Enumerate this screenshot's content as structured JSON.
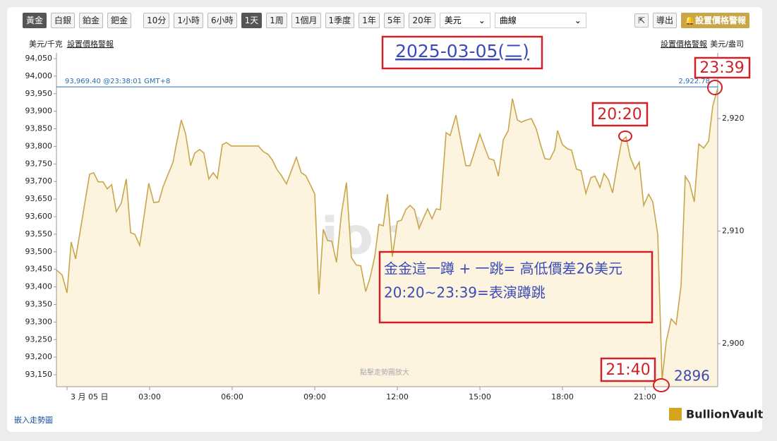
{
  "toolbar": {
    "metals": [
      "黃金",
      "白銀",
      "鉑金",
      "鈀金"
    ],
    "ranges": [
      "10分",
      "1小時",
      "6小時",
      "1天",
      "1周",
      "1個月",
      "1季度",
      "1年",
      "5年",
      "20年"
    ],
    "currency": "美元",
    "chart_style": "曲線",
    "export": "導出",
    "alert": "設置價格警報"
  },
  "chart_data": {
    "type": "line",
    "left_unit": "美元/千克",
    "right_unit": "美元/盎司",
    "alert_link": "設置價格警報",
    "watermark": "BullionVault",
    "hint": "點擊走勢圖放大",
    "x": [
      -0.38,
      -0.18,
      0,
      0.15,
      0.31,
      0.51,
      0.67,
      0.82,
      0.97,
      1.13,
      1.31,
      1.46,
      1.62,
      1.79,
      1.97,
      2.15,
      2.31,
      2.46,
      2.64,
      2.82,
      2.97,
      3.15,
      3.33,
      3.49,
      3.64,
      3.85,
      3.97,
      4.15,
      4.31,
      4.49,
      4.64,
      4.82,
      4.97,
      5.15,
      5.31,
      5.46,
      5.64,
      5.79,
      5.97,
      6.95,
      7.13,
      7.31,
      7.46,
      7.62,
      7.79,
      7.97,
      8.15,
      8.33,
      8.51,
      8.67,
      8.85,
      9.0,
      9.15,
      9.31,
      9.46,
      9.62,
      9.79,
      9.97,
      10.15,
      10.33,
      10.51,
      10.67,
      10.85,
      11.0,
      11.18,
      11.33,
      11.49,
      11.64,
      11.82,
      12.0,
      12.15,
      12.31,
      12.46,
      12.62,
      12.79,
      12.95,
      13.1,
      13.26,
      13.41,
      13.56,
      13.77,
      13.92,
      14.13,
      14.31,
      14.49,
      14.64,
      14.82,
      15.0,
      15.18,
      15.33,
      15.51,
      15.67,
      15.85,
      16.03,
      16.18,
      16.36,
      16.51,
      16.69,
      16.87,
      17.05,
      17.21,
      17.36,
      17.54,
      17.72,
      17.82,
      18.0,
      18.18,
      18.33,
      18.51,
      18.67,
      18.85,
      19.03,
      19.18,
      19.36,
      19.51,
      19.67,
      19.82,
      20.0,
      20.15,
      20.31,
      20.46,
      20.64,
      20.79,
      20.95,
      21.13,
      21.28,
      21.46,
      21.62,
      21.77,
      21.95,
      22.13,
      22.31,
      22.46,
      22.62,
      22.79,
      22.95,
      23.13,
      23.31,
      23.46,
      23.64
    ],
    "series": [
      {
        "color": "#c9a64a",
        "fill": "#fdf4df",
        "values": [
          93448,
          93434,
          93383,
          93528,
          93480,
          93574,
          93650,
          93721,
          93725,
          93699,
          93699,
          93679,
          93691,
          93614,
          93638,
          93707,
          93554,
          93550,
          93518,
          93614,
          93695,
          93640,
          93642,
          93685,
          93715,
          93755,
          93805,
          93875,
          93835,
          93745,
          93781,
          93791,
          93781,
          93707,
          93725,
          93709,
          93805,
          93811,
          93801,
          93801,
          93785,
          93777,
          93761,
          93735,
          93717,
          93693,
          93731,
          93769,
          93725,
          93717,
          93689,
          93664,
          93379,
          93564,
          93532,
          93530,
          93470,
          93610,
          93697,
          93484,
          93462,
          93460,
          93387,
          93423,
          93486,
          93578,
          93574,
          93664,
          93486,
          93586,
          93590,
          93620,
          93632,
          93620,
          93566,
          93596,
          93622,
          93594,
          93622,
          93620,
          93839,
          93831,
          93889,
          93815,
          93745,
          93745,
          93789,
          93835,
          93795,
          93765,
          93761,
          93715,
          93819,
          93845,
          93936,
          93875,
          93869,
          93875,
          93879,
          93849,
          93803,
          93765,
          93763,
          93791,
          93845,
          93805,
          93793,
          93789,
          93735,
          93731,
          93666,
          93711,
          93715,
          93683,
          93723,
          93705,
          93668,
          93751,
          93815,
          93827,
          93769,
          93735,
          93755,
          93632,
          93664,
          93642,
          93550,
          93136,
          93245,
          93309,
          93293,
          93405,
          93715,
          93695,
          93642,
          93807,
          93795,
          93815,
          93915,
          93966
        ]
      }
    ],
    "xlim": [
      -0.385,
      23.64
    ],
    "xticks": [
      {
        "value": 0,
        "label": "3 月 05 日"
      },
      {
        "value": 3,
        "label": "03:00"
      },
      {
        "value": 6,
        "label": "06:00"
      },
      {
        "value": 9,
        "label": "09:00"
      },
      {
        "value": 12,
        "label": "12:00"
      },
      {
        "value": 15,
        "label": "15:00"
      },
      {
        "value": 18,
        "label": "18:00"
      },
      {
        "value": 21,
        "label": "21:00"
      }
    ],
    "ylim": [
      93116,
      94066
    ],
    "yticks": [
      {
        "value": 93150,
        "label": "93,150"
      },
      {
        "value": 93200,
        "label": "93,200"
      },
      {
        "value": 93250,
        "label": "93,250"
      },
      {
        "value": 93300,
        "label": "93,300"
      },
      {
        "value": 93350,
        "label": "93,350"
      },
      {
        "value": 93400,
        "label": "93,400"
      },
      {
        "value": 93450,
        "label": "93,450"
      },
      {
        "value": 93500,
        "label": "93,500"
      },
      {
        "value": 93550,
        "label": "93,550"
      },
      {
        "value": 93600,
        "label": "93,600"
      },
      {
        "value": 93650,
        "label": "93,650"
      },
      {
        "value": 93700,
        "label": "93,700"
      },
      {
        "value": 93750,
        "label": "93,750"
      },
      {
        "value": 93800,
        "label": "93,800"
      },
      {
        "value": 93850,
        "label": "93,850"
      },
      {
        "value": 93900,
        "label": "93,900"
      },
      {
        "value": 93950,
        "label": "93,950"
      },
      {
        "value": 94000,
        "label": "94,000"
      },
      {
        "value": 94050,
        "label": "94,050"
      }
    ],
    "y2lim": [
      2896.18,
      2925.83
    ],
    "y2ticks": [
      {
        "value": 2900,
        "label": "2,900"
      },
      {
        "value": 2910,
        "label": "2,910"
      },
      {
        "value": 2920,
        "label": "2,920"
      }
    ],
    "grid": false,
    "last_price": {
      "value": 93969.4,
      "label": "93,969.40 @23:38:01 GMT+8",
      "oz_label": "2,922.78",
      "color": "#2a6db5"
    },
    "annotations": {
      "date": "2025-03-05(二)",
      "peak_time": "20:20",
      "low_time": "21:40",
      "end_time": "23:39",
      "low_price": "2896",
      "note": [
        "金金這一蹲 + 一跳= 高低價差26美元",
        "20:20~23:39=表演蹲跳"
      ]
    }
  },
  "footer": {
    "embed": "嵌入走勢圖",
    "logo": "BullionVault"
  }
}
